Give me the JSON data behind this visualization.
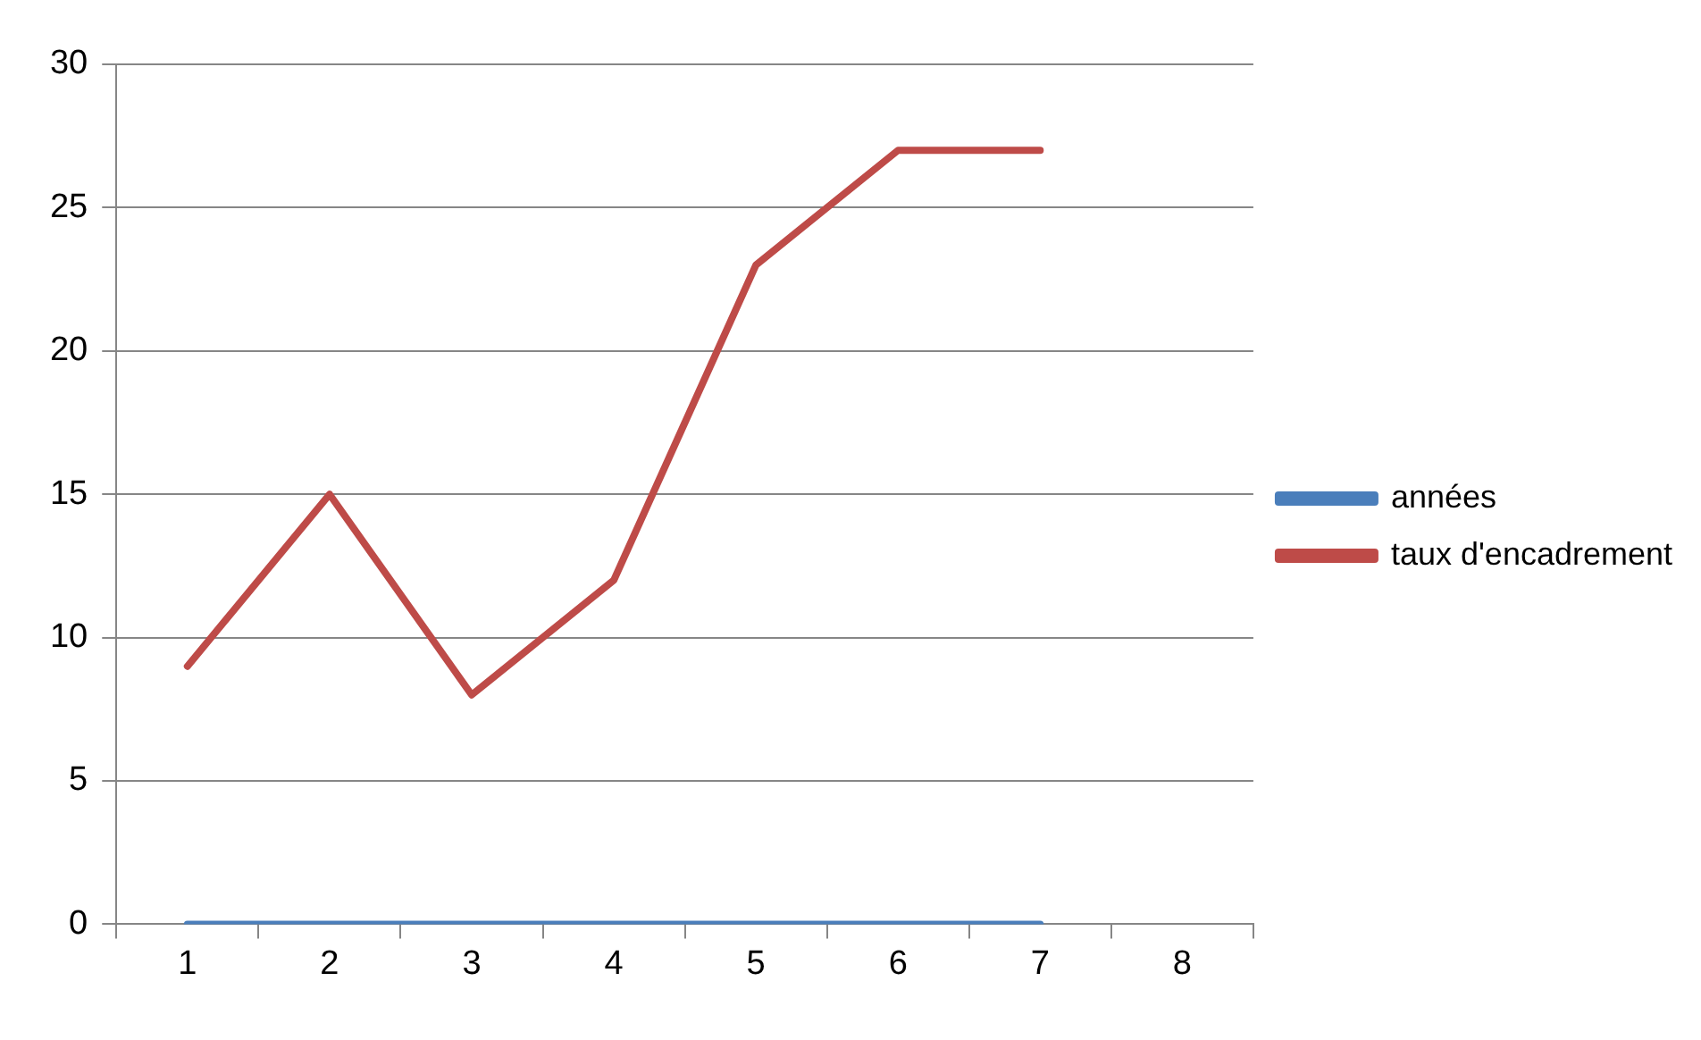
{
  "chart_data": {
    "type": "line",
    "categories": [
      "1",
      "2",
      "3",
      "4",
      "5",
      "6",
      "7",
      "8"
    ],
    "series": [
      {
        "name": "années",
        "color": "#4a7ebb",
        "values": [
          0,
          0,
          0,
          0,
          0,
          0,
          0,
          null
        ]
      },
      {
        "name": "taux d'encadrement",
        "color": "#be4b48",
        "values": [
          9,
          15,
          8,
          12,
          23,
          27,
          27,
          null
        ]
      }
    ],
    "ylim": [
      0,
      30
    ],
    "yticks": [
      0,
      5,
      10,
      15,
      20,
      25,
      30
    ],
    "grid": "y",
    "legend": "right",
    "marker": "none",
    "line_style": "solid"
  }
}
